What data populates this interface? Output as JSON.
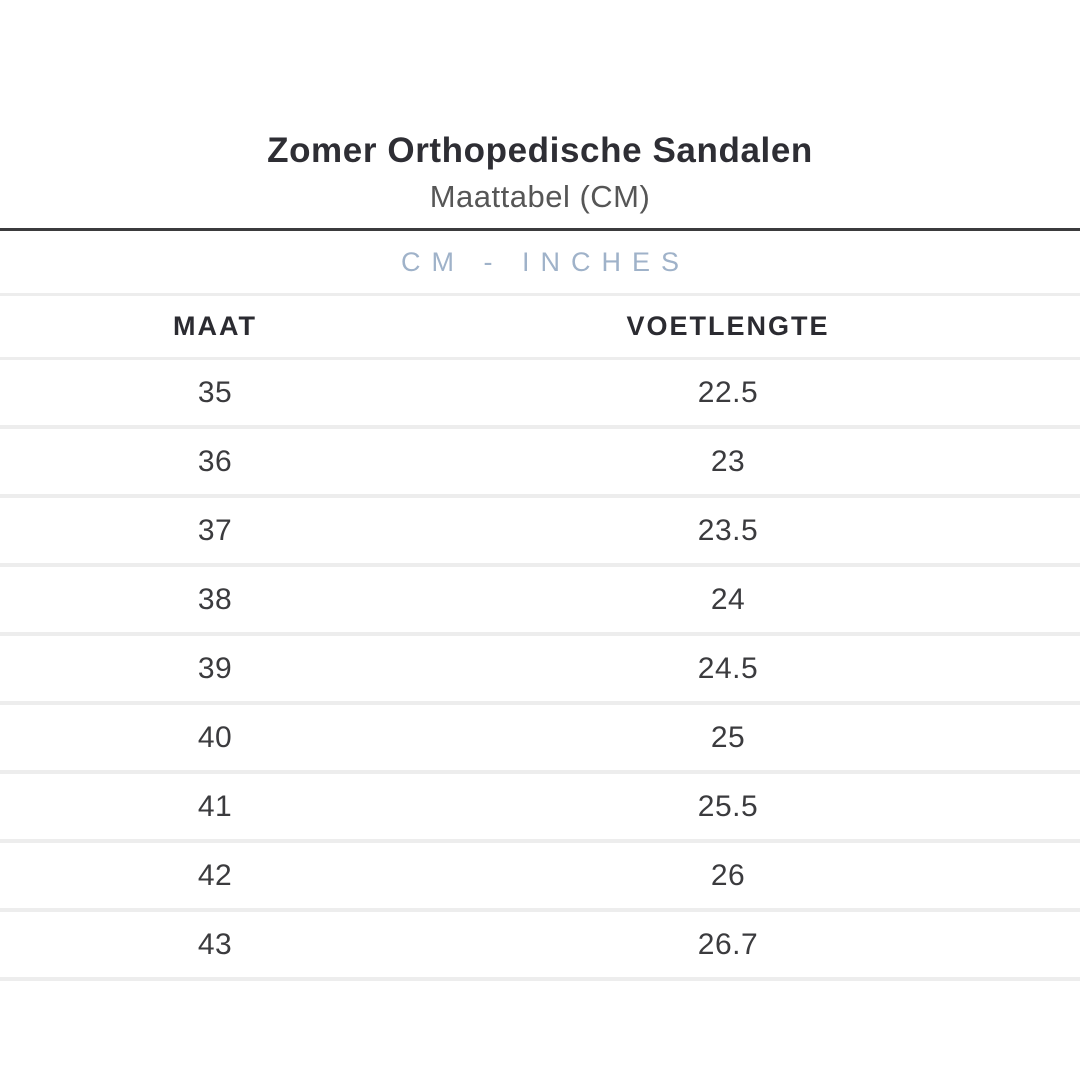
{
  "header": {
    "title": "Zomer Orthopedische Sandalen",
    "subtitle": "Maattabel (CM)",
    "unit_band": "CM - INCHES"
  },
  "table": {
    "columns": [
      "MAAT",
      "VOETLENGTE"
    ],
    "rows": [
      [
        "35",
        "22.5"
      ],
      [
        "36",
        "23"
      ],
      [
        "37",
        "23.5"
      ],
      [
        "38",
        "24"
      ],
      [
        "39",
        "24.5"
      ],
      [
        "40",
        "25"
      ],
      [
        "41",
        "25.5"
      ],
      [
        "42",
        "26"
      ],
      [
        "43",
        "26.7"
      ]
    ]
  },
  "colors": {
    "title_text": "#2e2e34",
    "subtitle_text": "#565656",
    "accent_blue": "#9fb2c9",
    "rule_dark": "#3b3b3d",
    "rule_light": "#ededed",
    "cell_text": "#3b3b3e",
    "header_text": "#2b2b31",
    "page_bg": "#ffffff"
  }
}
